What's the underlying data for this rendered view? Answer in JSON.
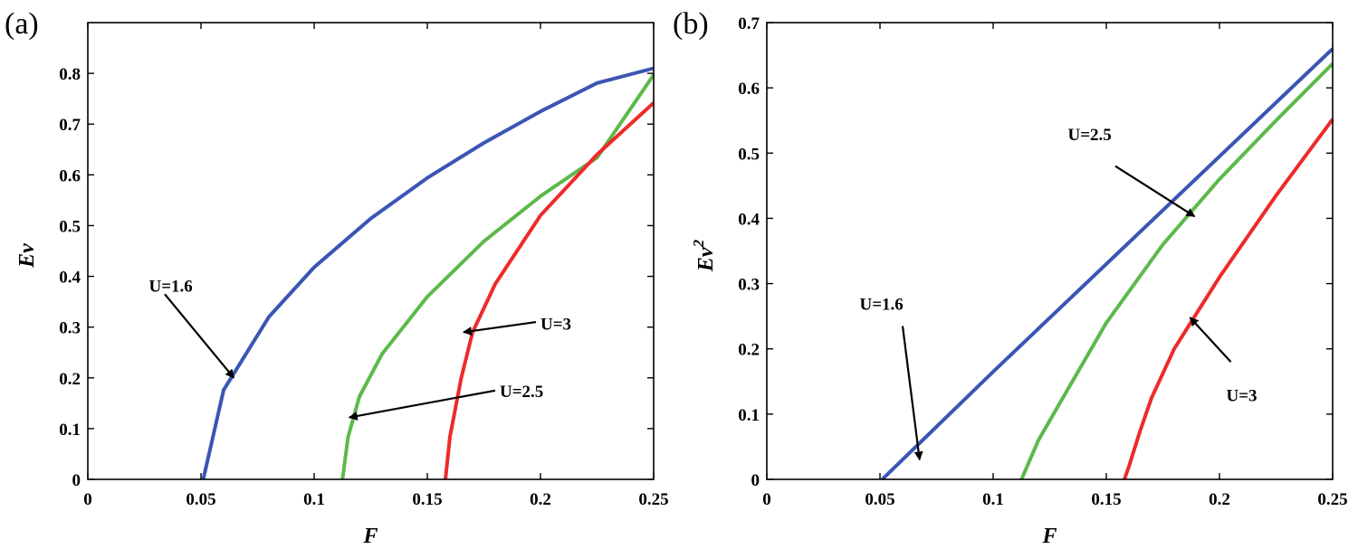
{
  "chart_data": [
    {
      "type": "line",
      "panel_label": "(a)",
      "xlabel": "F",
      "ylabel": "Ev",
      "ylabel_sup": "",
      "xlim": [
        0,
        0.25
      ],
      "ylim": [
        0,
        0.9
      ],
      "xticks": [
        0,
        0.05,
        0.1,
        0.15,
        0.2,
        0.25
      ],
      "xtick_labels": [
        "0",
        "0.05",
        "0.1",
        "0.15",
        "0.2",
        "0.25"
      ],
      "yticks": [
        0,
        0.1,
        0.2,
        0.3,
        0.4,
        0.5,
        0.6,
        0.7,
        0.8
      ],
      "ytick_labels": [
        "0",
        "0.1",
        "0.2",
        "0.3",
        "0.4",
        "0.5",
        "0.6",
        "0.7",
        "0.8"
      ],
      "series": [
        {
          "name": "U=1.6",
          "color": "#3a55b4",
          "F0": 0.051,
          "x": [
            0.051,
            0.06,
            0.08,
            0.1,
            0.125,
            0.15,
            0.175,
            0.2,
            0.225,
            0.25
          ],
          "y": [
            0,
            0.176,
            0.32,
            0.418,
            0.514,
            0.594,
            0.663,
            0.725,
            0.781,
            0.81
          ]
        },
        {
          "name": "U=2.5",
          "color": "#5cb94a",
          "F0": 0.1125,
          "x": [
            0.1125,
            0.115,
            0.12,
            0.13,
            0.15,
            0.175,
            0.2,
            0.225,
            0.25
          ],
          "y": [
            0,
            0.084,
            0.163,
            0.247,
            0.36,
            0.469,
            0.558,
            0.634,
            0.797
          ]
        },
        {
          "name": "U=3",
          "color": "#ee2a2a",
          "F0": 0.158,
          "x": [
            0.158,
            0.16,
            0.165,
            0.17,
            0.18,
            0.2,
            0.225,
            0.25
          ],
          "y": [
            0,
            0.084,
            0.2,
            0.29,
            0.385,
            0.52,
            0.64,
            0.742
          ]
        }
      ],
      "annotations": [
        {
          "text": "U=1.6",
          "label_at": [
            0.027,
            0.37
          ],
          "arrow_from": [
            0.034,
            0.365
          ],
          "arrow_to": [
            0.0645,
            0.2
          ]
        },
        {
          "text": "U=3",
          "label_at": [
            0.2,
            0.295
          ],
          "arrow_from": [
            0.198,
            0.31
          ],
          "arrow_to": [
            0.166,
            0.29
          ]
        },
        {
          "text": "U=2.5",
          "label_at": [
            0.182,
            0.162
          ],
          "arrow_from": [
            0.18,
            0.175
          ],
          "arrow_to": [
            0.1155,
            0.122
          ]
        }
      ]
    },
    {
      "type": "line",
      "panel_label": "(b)",
      "xlabel": "F",
      "ylabel": "Ev",
      "ylabel_sup": "2",
      "xlim": [
        0,
        0.25
      ],
      "ylim": [
        0,
        0.7
      ],
      "xticks": [
        0,
        0.05,
        0.1,
        0.15,
        0.2,
        0.25
      ],
      "xtick_labels": [
        "0",
        "0.05",
        "0.1",
        "0.15",
        "0.2",
        "0.25"
      ],
      "yticks": [
        0,
        0.1,
        0.2,
        0.3,
        0.4,
        0.5,
        0.6,
        0.7
      ],
      "ytick_labels": [
        "0",
        "0.1",
        "0.2",
        "0.3",
        "0.4",
        "0.5",
        "0.6",
        "0.7"
      ],
      "series": [
        {
          "name": "U=1.6",
          "color": "#3a55b4",
          "x": [
            0.051,
            0.1,
            0.15,
            0.2,
            0.25
          ],
          "y": [
            0,
            0.165,
            0.33,
            0.495,
            0.66
          ]
        },
        {
          "name": "U=2.5",
          "color": "#5cb94a",
          "x": [
            0.1125,
            0.12,
            0.13,
            0.15,
            0.175,
            0.2,
            0.225,
            0.25
          ],
          "y": [
            0,
            0.06,
            0.12,
            0.24,
            0.36,
            0.46,
            0.55,
            0.637
          ]
        },
        {
          "name": "U=3",
          "color": "#ee2a2a",
          "x": [
            0.158,
            0.16,
            0.165,
            0.17,
            0.18,
            0.19,
            0.2,
            0.225,
            0.25
          ],
          "y": [
            0,
            0.02,
            0.075,
            0.125,
            0.2,
            0.255,
            0.31,
            0.435,
            0.552
          ]
        }
      ],
      "annotations": [
        {
          "text": "U=2.5",
          "label_at": [
            0.133,
            0.52
          ],
          "arrow_from": [
            0.154,
            0.48
          ],
          "arrow_to": [
            0.189,
            0.403
          ]
        },
        {
          "text": "U=1.6",
          "label_at": [
            0.041,
            0.26
          ],
          "arrow_from": [
            0.06,
            0.235
          ],
          "arrow_to": [
            0.0675,
            0.03
          ]
        },
        {
          "text": "U=3",
          "label_at": [
            0.203,
            0.12
          ],
          "arrow_from": [
            0.205,
            0.18
          ],
          "arrow_to": [
            0.187,
            0.248
          ]
        }
      ]
    }
  ]
}
